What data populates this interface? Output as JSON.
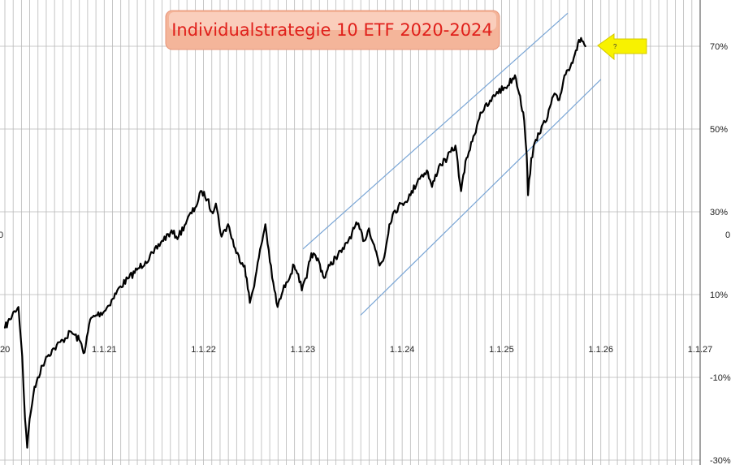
{
  "chart_data": {
    "type": "line",
    "title": "Individualstrategie 10 ETF 2020-2024",
    "xlabel": "",
    "ylabel": "",
    "x_tick_labels": [
      "20",
      "1.1.21",
      "1.1.22",
      "1.1.23",
      "1.1.24",
      "1.1.25",
      "1.1.26",
      "1.1.27"
    ],
    "y_tick_labels": [
      "70%",
      "50%",
      "30%",
      "10%",
      "-10%",
      "-30%"
    ],
    "y_ticks": [
      70,
      50,
      30,
      10,
      -10,
      -30
    ],
    "ylim": [
      -30,
      80
    ],
    "xlim": [
      "2020-01-01",
      "2027-01-01"
    ],
    "grid": true,
    "annotation": "?",
    "edge_marks": {
      "left": "0",
      "right": "0"
    },
    "series": [
      {
        "color": "#000000",
        "points": [
          [
            "2020-01-01",
            2
          ],
          [
            "2020-01-20",
            4
          ],
          [
            "2020-02-05",
            6
          ],
          [
            "2020-02-20",
            7
          ],
          [
            "2020-03-05",
            -5
          ],
          [
            "2020-03-15",
            -20
          ],
          [
            "2020-03-23",
            -27
          ],
          [
            "2020-04-01",
            -20
          ],
          [
            "2020-04-15",
            -14
          ],
          [
            "2020-05-01",
            -10
          ],
          [
            "2020-06-01",
            -5
          ],
          [
            "2020-07-01",
            -3
          ],
          [
            "2020-08-01",
            -1
          ],
          [
            "2020-09-01",
            1
          ],
          [
            "2020-10-01",
            -1
          ],
          [
            "2020-10-20",
            -4
          ],
          [
            "2020-11-10",
            4
          ],
          [
            "2020-12-01",
            5
          ],
          [
            "2021-01-01",
            6
          ],
          [
            "2021-02-01",
            9
          ],
          [
            "2021-03-01",
            12
          ],
          [
            "2021-04-01",
            14
          ],
          [
            "2021-05-01",
            16
          ],
          [
            "2021-06-01",
            18
          ],
          [
            "2021-07-01",
            20
          ],
          [
            "2021-08-01",
            23
          ],
          [
            "2021-09-01",
            25
          ],
          [
            "2021-10-01",
            24
          ],
          [
            "2021-11-01",
            28
          ],
          [
            "2021-12-01",
            31
          ],
          [
            "2021-12-25",
            35
          ],
          [
            "2022-01-15",
            33
          ],
          [
            "2022-01-31",
            30
          ],
          [
            "2022-02-15",
            32
          ],
          [
            "2022-03-08",
            24
          ],
          [
            "2022-04-01",
            27
          ],
          [
            "2022-05-01",
            20
          ],
          [
            "2022-06-01",
            17
          ],
          [
            "2022-06-20",
            8
          ],
          [
            "2022-07-10",
            14
          ],
          [
            "2022-08-01",
            22
          ],
          [
            "2022-08-16",
            27
          ],
          [
            "2022-09-10",
            14
          ],
          [
            "2022-09-30",
            7
          ],
          [
            "2022-10-15",
            10
          ],
          [
            "2022-11-01",
            13
          ],
          [
            "2022-11-30",
            17
          ],
          [
            "2022-12-15",
            15
          ],
          [
            "2022-12-28",
            11
          ],
          [
            "2023-01-15",
            14
          ],
          [
            "2023-02-01",
            20
          ],
          [
            "2023-03-01",
            18
          ],
          [
            "2023-03-20",
            14
          ],
          [
            "2023-04-10",
            17
          ],
          [
            "2023-05-01",
            19
          ],
          [
            "2023-06-01",
            21
          ],
          [
            "2023-07-01",
            25
          ],
          [
            "2023-07-20",
            27
          ],
          [
            "2023-08-15",
            23
          ],
          [
            "2023-09-01",
            26
          ],
          [
            "2023-09-20",
            22
          ],
          [
            "2023-10-10",
            17
          ],
          [
            "2023-10-27",
            19
          ],
          [
            "2023-11-15",
            27
          ],
          [
            "2023-12-01",
            30
          ],
          [
            "2024-01-01",
            32
          ],
          [
            "2024-02-01",
            34
          ],
          [
            "2024-03-01",
            38
          ],
          [
            "2024-04-01",
            40
          ],
          [
            "2024-04-20",
            36
          ],
          [
            "2024-05-15",
            41
          ],
          [
            "2024-06-15",
            43
          ],
          [
            "2024-07-15",
            46
          ],
          [
            "2024-08-05",
            35
          ],
          [
            "2024-08-25",
            43
          ],
          [
            "2024-09-15",
            47
          ],
          [
            "2024-10-15",
            54
          ],
          [
            "2024-11-15",
            56
          ],
          [
            "2024-12-15",
            59
          ],
          [
            "2025-01-15",
            60
          ],
          [
            "2025-02-19",
            63
          ],
          [
            "2025-03-10",
            58
          ],
          [
            "2025-03-25",
            52
          ],
          [
            "2025-04-03",
            44
          ],
          [
            "2025-04-08",
            34
          ],
          [
            "2025-04-20",
            43
          ],
          [
            "2025-05-15",
            49
          ],
          [
            "2025-06-15",
            52
          ],
          [
            "2025-07-10",
            58
          ],
          [
            "2025-08-01",
            57
          ],
          [
            "2025-08-20",
            63
          ],
          [
            "2025-09-15",
            66
          ],
          [
            "2025-10-01",
            69
          ],
          [
            "2025-10-20",
            72
          ],
          [
            "2025-11-05",
            70
          ]
        ]
      }
    ],
    "trend_channel": {
      "color": "#7aa6d6",
      "lines": [
        {
          "from": [
            "2023-01-01",
            21
          ],
          "to": [
            "2025-09-01",
            78
          ]
        },
        {
          "from": [
            "2023-08-01",
            5
          ],
          "to": [
            "2026-01-01",
            62
          ]
        }
      ]
    }
  }
}
